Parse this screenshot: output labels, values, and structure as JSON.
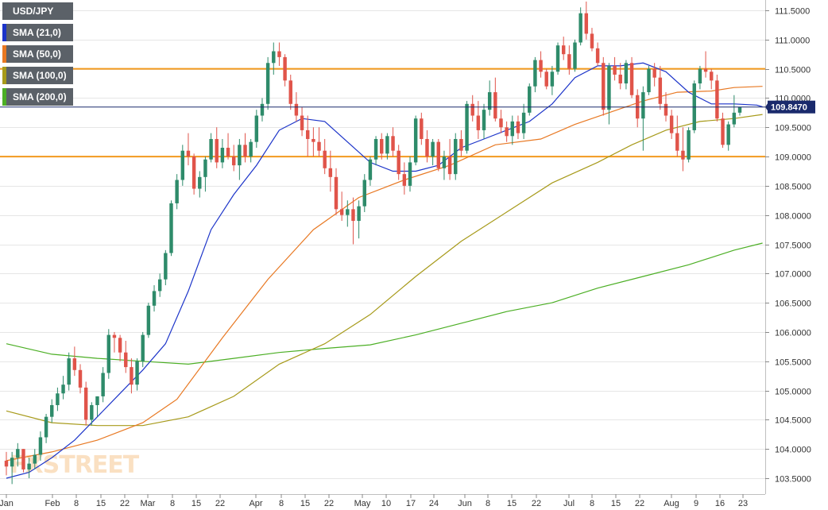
{
  "legend": {
    "items": [
      {
        "label": "USD/JPY",
        "color": "#5b6168"
      },
      {
        "label": "SMA (21,0)",
        "color": "#1c34c9"
      },
      {
        "label": "SMA (50,0)",
        "color": "#e87822"
      },
      {
        "label": "SMA (100,0)",
        "color": "#a79a1a"
      },
      {
        "label": "SMA (200,0)",
        "color": "#4caf25"
      }
    ]
  },
  "watermark": "FXSTREET",
  "colors": {
    "up": "#2e8b6a",
    "down": "#e0544a",
    "hline": "#f29a1e",
    "last_price_line": "#1a2a6c",
    "price_tag_bg": "#1a2a6c",
    "grid": "#e6e6e6"
  },
  "chart_data": {
    "type": "candlestick",
    "title": "USD/JPY",
    "ylim": [
      103.3,
      111.7
    ],
    "y_ticks": [
      "111.5000",
      "111.0000",
      "110.5000",
      "110.0000",
      "109.5000",
      "109.0000",
      "108.5000",
      "108.0000",
      "107.5000",
      "107.0000",
      "106.5000",
      "106.0000",
      "105.5000",
      "105.0000",
      "104.5000",
      "104.0000",
      "103.5000"
    ],
    "x_ticks": [
      "Jan",
      "Feb",
      "8",
      "15",
      "22",
      "Mar",
      "8",
      "15",
      "22",
      "Apr",
      "8",
      "15",
      "22",
      "May",
      "10",
      "17",
      "24",
      "Jun",
      "8",
      "15",
      "22",
      "Jul",
      "8",
      "15",
      "22",
      "Aug",
      "9",
      "16",
      "23"
    ],
    "last_price": "109.8470",
    "horizontal_lines": [
      110.5,
      109.0
    ],
    "candles": [
      [
        103.8,
        103.95,
        103.55,
        103.7
      ],
      [
        103.7,
        103.95,
        103.4,
        103.85
      ],
      [
        103.85,
        104.1,
        103.7,
        104.0
      ],
      [
        104.0,
        104.0,
        103.6,
        103.65
      ],
      [
        103.65,
        103.85,
        103.5,
        103.75
      ],
      [
        103.75,
        104.0,
        103.65,
        103.9
      ],
      [
        103.9,
        104.3,
        103.8,
        104.2
      ],
      [
        104.2,
        104.6,
        104.1,
        104.55
      ],
      [
        104.55,
        104.85,
        104.45,
        104.75
      ],
      [
        104.75,
        105.05,
        104.65,
        104.95
      ],
      [
        104.95,
        105.25,
        104.85,
        105.1
      ],
      [
        105.1,
        105.65,
        105.0,
        105.55
      ],
      [
        105.55,
        105.75,
        105.25,
        105.35
      ],
      [
        105.35,
        105.45,
        104.95,
        105.05
      ],
      [
        105.05,
        105.15,
        104.4,
        104.5
      ],
      [
        104.5,
        104.8,
        104.4,
        104.75
      ],
      [
        104.75,
        104.9,
        104.55,
        104.9
      ],
      [
        104.9,
        105.4,
        104.8,
        105.3
      ],
      [
        105.3,
        106.05,
        105.2,
        105.95
      ],
      [
        105.95,
        106.0,
        105.65,
        105.9
      ],
      [
        105.9,
        105.95,
        105.5,
        105.65
      ],
      [
        105.65,
        105.85,
        105.3,
        105.4
      ],
      [
        105.4,
        105.55,
        104.95,
        105.1
      ],
      [
        105.1,
        105.55,
        105.0,
        105.5
      ],
      [
        105.5,
        106.0,
        105.4,
        105.95
      ],
      [
        105.95,
        106.5,
        105.9,
        106.45
      ],
      [
        106.45,
        106.8,
        106.35,
        106.7
      ],
      [
        106.7,
        107.0,
        106.6,
        106.9
      ],
      [
        106.9,
        107.4,
        106.8,
        107.35
      ],
      [
        107.35,
        108.25,
        107.3,
        108.2
      ],
      [
        108.2,
        108.7,
        108.1,
        108.6
      ],
      [
        108.6,
        109.2,
        108.5,
        109.1
      ],
      [
        109.1,
        109.4,
        108.85,
        109.0
      ],
      [
        109.0,
        109.05,
        108.35,
        108.45
      ],
      [
        108.45,
        108.75,
        108.3,
        108.65
      ],
      [
        108.65,
        109.0,
        108.4,
        108.95
      ],
      [
        108.95,
        109.4,
        108.9,
        109.3
      ],
      [
        109.3,
        109.5,
        108.8,
        108.9
      ],
      [
        108.9,
        109.3,
        108.8,
        109.15
      ],
      [
        109.15,
        109.4,
        108.95,
        109.0
      ],
      [
        109.0,
        109.2,
        108.75,
        108.85
      ],
      [
        108.85,
        109.3,
        108.6,
        109.2
      ],
      [
        109.2,
        109.4,
        108.9,
        109.0
      ],
      [
        109.0,
        109.3,
        108.9,
        109.25
      ],
      [
        109.25,
        109.8,
        109.15,
        109.7
      ],
      [
        109.7,
        110.0,
        109.6,
        109.9
      ],
      [
        109.9,
        110.7,
        109.8,
        110.6
      ],
      [
        110.6,
        110.95,
        110.4,
        110.8
      ],
      [
        110.8,
        110.95,
        110.55,
        110.7
      ],
      [
        110.7,
        110.75,
        110.2,
        110.3
      ],
      [
        110.3,
        110.4,
        109.8,
        109.9
      ],
      [
        109.9,
        110.1,
        109.6,
        109.7
      ],
      [
        109.7,
        109.85,
        109.35,
        109.45
      ],
      [
        109.45,
        109.7,
        109.0,
        109.3
      ],
      [
        109.3,
        109.5,
        109.0,
        109.25
      ],
      [
        109.25,
        109.5,
        109.0,
        109.1
      ],
      [
        109.1,
        109.3,
        108.7,
        108.8
      ],
      [
        108.8,
        109.1,
        108.4,
        108.65
      ],
      [
        108.65,
        108.8,
        108.0,
        108.1
      ],
      [
        108.1,
        108.4,
        107.9,
        108.0
      ],
      [
        108.0,
        108.25,
        107.8,
        108.1
      ],
      [
        108.1,
        108.3,
        107.5,
        107.9
      ],
      [
        107.9,
        108.25,
        107.6,
        108.15
      ],
      [
        108.15,
        108.7,
        108.05,
        108.6
      ],
      [
        108.6,
        109.0,
        108.5,
        108.95
      ],
      [
        108.95,
        109.35,
        108.85,
        109.3
      ],
      [
        109.3,
        109.4,
        108.95,
        109.05
      ],
      [
        109.05,
        109.4,
        108.95,
        109.35
      ],
      [
        109.35,
        109.5,
        109.0,
        109.1
      ],
      [
        109.1,
        109.2,
        108.6,
        108.7
      ],
      [
        108.7,
        108.9,
        108.35,
        108.5
      ],
      [
        108.5,
        109.0,
        108.4,
        108.9
      ],
      [
        108.9,
        109.7,
        108.85,
        109.65
      ],
      [
        109.65,
        109.75,
        109.2,
        109.3
      ],
      [
        109.3,
        109.45,
        108.9,
        109.0
      ],
      [
        109.0,
        109.3,
        108.85,
        109.25
      ],
      [
        109.25,
        109.3,
        108.75,
        108.8
      ],
      [
        108.8,
        109.1,
        108.6,
        109.0
      ],
      [
        109.0,
        109.3,
        108.6,
        108.7
      ],
      [
        108.7,
        109.4,
        108.6,
        109.3
      ],
      [
        109.3,
        109.45,
        109.0,
        109.1
      ],
      [
        109.1,
        109.95,
        109.05,
        109.9
      ],
      [
        109.9,
        110.05,
        109.6,
        109.7
      ],
      [
        109.7,
        109.95,
        109.3,
        109.45
      ],
      [
        109.45,
        109.9,
        109.3,
        109.8
      ],
      [
        109.8,
        110.3,
        109.7,
        110.1
      ],
      [
        110.1,
        110.35,
        109.6,
        109.65
      ],
      [
        109.65,
        109.8,
        109.4,
        109.5
      ],
      [
        109.5,
        109.6,
        109.25,
        109.35
      ],
      [
        109.35,
        109.7,
        109.2,
        109.6
      ],
      [
        109.6,
        109.7,
        109.3,
        109.4
      ],
      [
        109.4,
        109.9,
        109.3,
        109.75
      ],
      [
        109.75,
        110.25,
        109.7,
        110.2
      ],
      [
        110.2,
        110.7,
        110.1,
        110.65
      ],
      [
        110.65,
        110.8,
        110.35,
        110.45
      ],
      [
        110.45,
        110.5,
        110.15,
        110.2
      ],
      [
        110.2,
        110.55,
        110.05,
        110.45
      ],
      [
        110.45,
        110.95,
        110.4,
        110.9
      ],
      [
        110.9,
        111.05,
        110.65,
        110.75
      ],
      [
        110.75,
        110.9,
        110.4,
        110.5
      ],
      [
        110.5,
        111.0,
        110.45,
        110.95
      ],
      [
        110.95,
        111.55,
        110.9,
        111.45
      ],
      [
        111.45,
        111.65,
        111.0,
        111.1
      ],
      [
        111.1,
        111.2,
        110.8,
        110.85
      ],
      [
        110.85,
        110.95,
        110.55,
        110.6
      ],
      [
        110.6,
        110.7,
        109.7,
        109.8
      ],
      [
        109.8,
        110.6,
        109.55,
        110.55
      ],
      [
        110.55,
        110.7,
        110.3,
        110.4
      ],
      [
        110.4,
        110.6,
        110.15,
        110.25
      ],
      [
        110.25,
        110.65,
        110.15,
        110.6
      ],
      [
        110.6,
        110.7,
        110.0,
        110.05
      ],
      [
        110.05,
        110.15,
        109.5,
        109.65
      ],
      [
        109.65,
        110.2,
        109.1,
        110.1
      ],
      [
        110.1,
        110.55,
        110.05,
        110.5
      ],
      [
        110.5,
        110.6,
        110.2,
        110.35
      ],
      [
        110.35,
        110.55,
        109.8,
        109.9
      ],
      [
        109.9,
        110.1,
        109.6,
        109.7
      ],
      [
        109.7,
        109.8,
        109.3,
        109.4
      ],
      [
        109.4,
        109.7,
        109.0,
        109.1
      ],
      [
        109.1,
        109.5,
        108.75,
        108.95
      ],
      [
        108.95,
        109.5,
        108.9,
        109.45
      ],
      [
        109.45,
        110.3,
        109.4,
        110.25
      ],
      [
        110.25,
        110.55,
        110.15,
        110.5
      ],
      [
        110.5,
        110.8,
        110.35,
        110.45
      ],
      [
        110.45,
        110.5,
        110.15,
        110.3
      ],
      [
        110.3,
        110.4,
        109.6,
        109.65
      ],
      [
        109.65,
        109.75,
        109.15,
        109.2
      ],
      [
        109.2,
        109.6,
        109.1,
        109.55
      ],
      [
        109.55,
        110.05,
        109.5,
        109.75
      ],
      [
        109.75,
        109.85,
        109.7,
        109.85
      ]
    ],
    "sma_21": [
      [
        0,
        103.5
      ],
      [
        4,
        103.6
      ],
      [
        8,
        103.85
      ],
      [
        12,
        104.15
      ],
      [
        16,
        104.55
      ],
      [
        20,
        104.95
      ],
      [
        24,
        105.35
      ],
      [
        28,
        105.8
      ],
      [
        32,
        106.7
      ],
      [
        36,
        107.75
      ],
      [
        40,
        108.35
      ],
      [
        44,
        108.85
      ],
      [
        48,
        109.45
      ],
      [
        52,
        109.65
      ],
      [
        56,
        109.6
      ],
      [
        60,
        109.25
      ],
      [
        64,
        108.9
      ],
      [
        68,
        108.75
      ],
      [
        72,
        108.75
      ],
      [
        76,
        108.85
      ],
      [
        80,
        109.15
      ],
      [
        84,
        109.3
      ],
      [
        88,
        109.45
      ],
      [
        92,
        109.6
      ],
      [
        96,
        109.9
      ],
      [
        100,
        110.35
      ],
      [
        104,
        110.55
      ],
      [
        108,
        110.55
      ],
      [
        112,
        110.6
      ],
      [
        116,
        110.45
      ],
      [
        120,
        110.1
      ],
      [
        124,
        109.9
      ],
      [
        128,
        109.9
      ],
      [
        132,
        109.88
      ],
      [
        133,
        109.85
      ]
    ],
    "sma_50": [
      [
        0,
        103.8
      ],
      [
        8,
        103.95
      ],
      [
        16,
        104.15
      ],
      [
        24,
        104.45
      ],
      [
        30,
        104.85
      ],
      [
        38,
        105.9
      ],
      [
        46,
        106.9
      ],
      [
        54,
        107.75
      ],
      [
        62,
        108.3
      ],
      [
        70,
        108.6
      ],
      [
        78,
        108.85
      ],
      [
        86,
        109.2
      ],
      [
        94,
        109.3
      ],
      [
        100,
        109.55
      ],
      [
        106,
        109.75
      ],
      [
        112,
        109.95
      ],
      [
        118,
        110.1
      ],
      [
        124,
        110.12
      ],
      [
        128,
        110.18
      ],
      [
        133,
        110.2
      ]
    ],
    "sma_100": [
      [
        0,
        104.65
      ],
      [
        8,
        104.45
      ],
      [
        16,
        104.4
      ],
      [
        24,
        104.4
      ],
      [
        32,
        104.55
      ],
      [
        40,
        104.9
      ],
      [
        48,
        105.45
      ],
      [
        56,
        105.8
      ],
      [
        64,
        106.3
      ],
      [
        72,
        106.95
      ],
      [
        80,
        107.55
      ],
      [
        88,
        108.05
      ],
      [
        96,
        108.55
      ],
      [
        104,
        108.9
      ],
      [
        110,
        109.2
      ],
      [
        116,
        109.45
      ],
      [
        122,
        109.6
      ],
      [
        128,
        109.65
      ],
      [
        133,
        109.72
      ]
    ],
    "sma_200": [
      [
        0,
        105.8
      ],
      [
        8,
        105.62
      ],
      [
        16,
        105.55
      ],
      [
        24,
        105.5
      ],
      [
        32,
        105.45
      ],
      [
        40,
        105.55
      ],
      [
        48,
        105.65
      ],
      [
        56,
        105.72
      ],
      [
        64,
        105.78
      ],
      [
        72,
        105.95
      ],
      [
        80,
        106.15
      ],
      [
        88,
        106.35
      ],
      [
        96,
        106.5
      ],
      [
        104,
        106.75
      ],
      [
        112,
        106.95
      ],
      [
        120,
        107.15
      ],
      [
        128,
        107.4
      ],
      [
        133,
        107.52
      ]
    ]
  }
}
